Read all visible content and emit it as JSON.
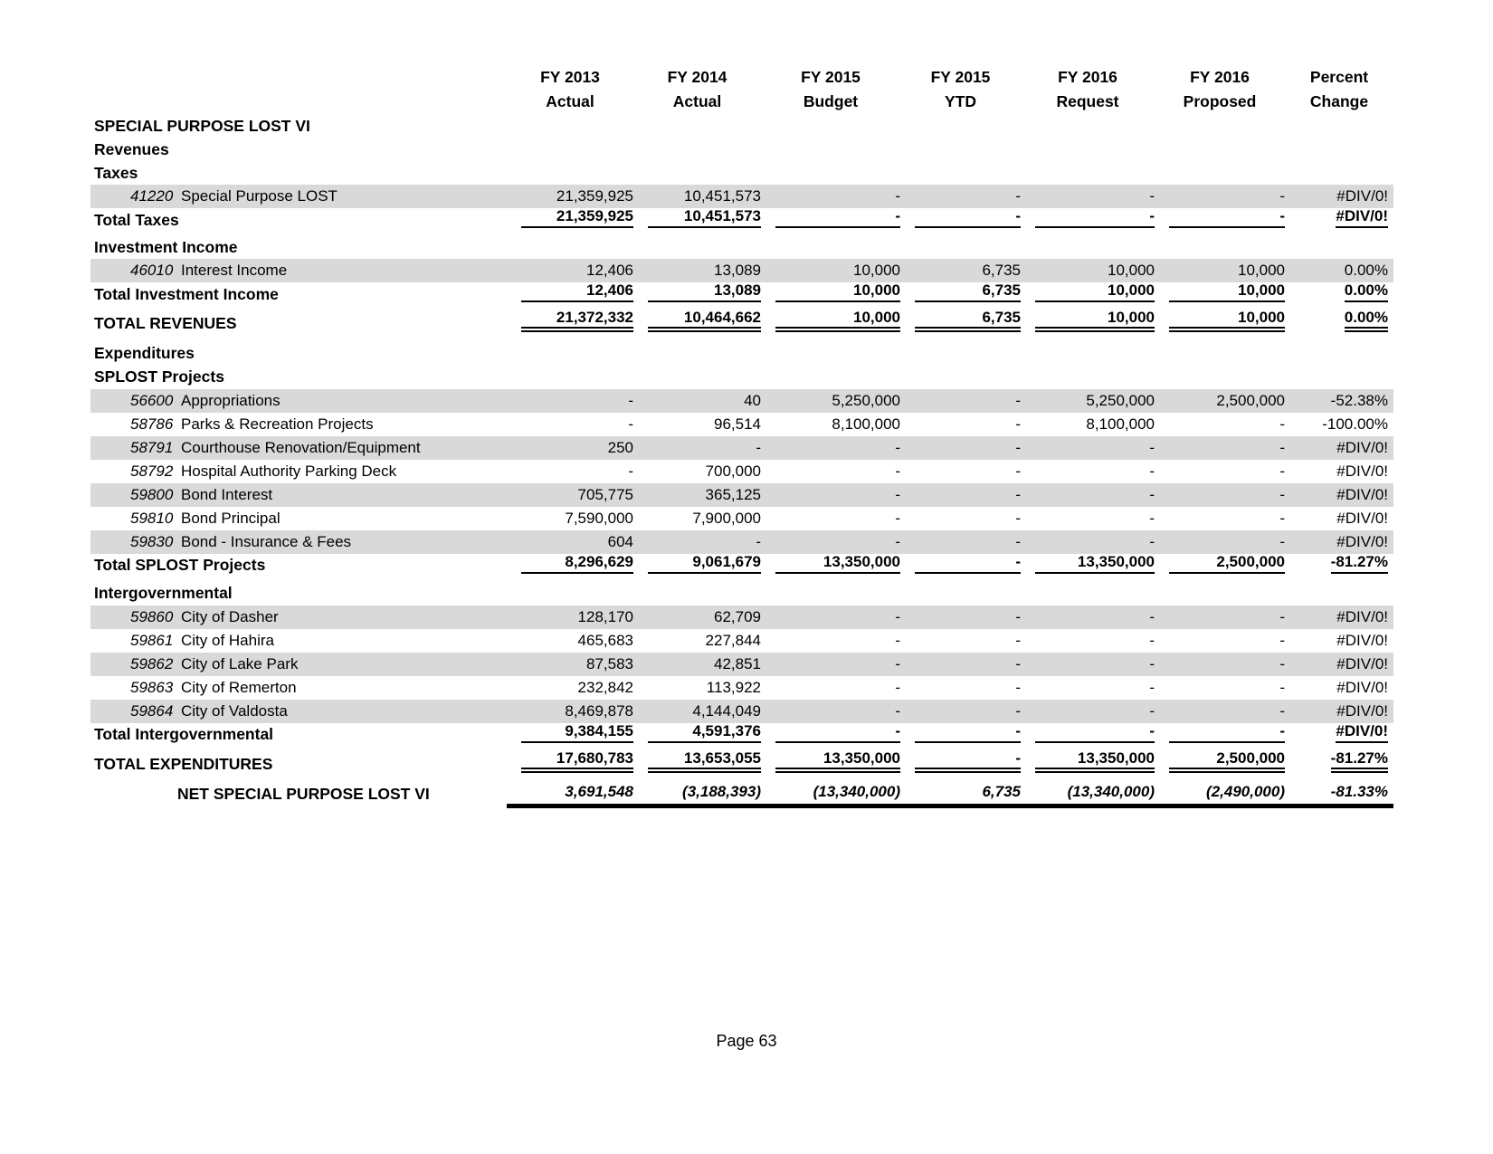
{
  "page": {
    "footer": "Page 63"
  },
  "colors": {
    "row_shading": "#d9d9d9",
    "text": "#000000",
    "background": "#ffffff"
  },
  "table": {
    "columns": [
      {
        "line1": "FY 2013",
        "line2": "Actual"
      },
      {
        "line1": "FY 2014",
        "line2": "Actual"
      },
      {
        "line1": "FY 2015",
        "line2": "Budget"
      },
      {
        "line1": "FY 2015",
        "line2": "YTD"
      },
      {
        "line1": "FY 2016",
        "line2": "Request"
      },
      {
        "line1": "FY 2016",
        "line2": "Proposed"
      },
      {
        "line1": "Percent",
        "line2": "Change"
      }
    ],
    "rows": [
      {
        "type": "section",
        "label": "SPECIAL PURPOSE LOST VI"
      },
      {
        "type": "section",
        "label": "Revenues"
      },
      {
        "type": "section",
        "label": "Taxes"
      },
      {
        "type": "detail",
        "shaded": true,
        "code": "41220",
        "label": "Special Purpose LOST",
        "values": [
          "21,359,925",
          "10,451,573",
          "-",
          "-",
          "-",
          "-",
          "#DIV/0!"
        ]
      },
      {
        "type": "total",
        "label": "Total Taxes",
        "values": [
          "21,359,925",
          "10,451,573",
          "-",
          "-",
          "-",
          "-",
          "#DIV/0!"
        ]
      },
      {
        "type": "spacer",
        "h": 4
      },
      {
        "type": "section",
        "label": "Investment Income"
      },
      {
        "type": "detail",
        "shaded": true,
        "code": "46010",
        "label": "Interest Income",
        "values": [
          "12,406",
          "13,089",
          "10,000",
          "6,735",
          "10,000",
          "10,000",
          "0.00%"
        ]
      },
      {
        "type": "total",
        "label": "Total Investment Income",
        "values": [
          "12,406",
          "13,089",
          "10,000",
          "6,735",
          "10,000",
          "10,000",
          "0.00%"
        ]
      },
      {
        "type": "spacer",
        "h": 4
      },
      {
        "type": "grand",
        "label": "TOTAL REVENUES",
        "values": [
          "21,372,332",
          "10,464,662",
          "10,000",
          "6,735",
          "10,000",
          "10,000",
          "0.00%"
        ]
      },
      {
        "type": "spacer",
        "h": 7
      },
      {
        "type": "section",
        "label": "Expenditures"
      },
      {
        "type": "section",
        "label": "SPLOST Projects"
      },
      {
        "type": "detail",
        "shaded": true,
        "code": "56600",
        "label": "Appropriations",
        "values": [
          "-",
          "40",
          "5,250,000",
          "-",
          "5,250,000",
          "2,500,000",
          "-52.38%"
        ]
      },
      {
        "type": "detail",
        "shaded": false,
        "code": "58786",
        "label": "Parks & Recreation Projects",
        "values": [
          "-",
          "96,514",
          "8,100,000",
          "-",
          "8,100,000",
          "-",
          "-100.00%"
        ]
      },
      {
        "type": "detail",
        "shaded": true,
        "code": "58791",
        "label": "Courthouse Renovation/Equipment",
        "values": [
          "250",
          "-",
          "-",
          "-",
          "-",
          "-",
          "#DIV/0!"
        ]
      },
      {
        "type": "detail",
        "shaded": false,
        "code": "58792",
        "label": "Hospital Authority Parking Deck",
        "values": [
          "-",
          "700,000",
          "-",
          "-",
          "-",
          "-",
          "#DIV/0!"
        ]
      },
      {
        "type": "detail",
        "shaded": true,
        "code": "59800",
        "label": "Bond Interest",
        "values": [
          "705,775",
          "365,125",
          "-",
          "-",
          "-",
          "-",
          "#DIV/0!"
        ]
      },
      {
        "type": "detail",
        "shaded": false,
        "code": "59810",
        "label": "Bond Principal",
        "values": [
          "7,590,000",
          "7,900,000",
          "-",
          "-",
          "-",
          "-",
          "#DIV/0!"
        ]
      },
      {
        "type": "detail",
        "shaded": true,
        "code": "59830",
        "label": "Bond - Insurance & Fees",
        "values": [
          "604",
          "-",
          "-",
          "-",
          "-",
          "-",
          "#DIV/0!"
        ]
      },
      {
        "type": "total",
        "label": "Total SPLOST Projects",
        "values": [
          "8,296,629",
          "9,061,679",
          "13,350,000",
          "-",
          "13,350,000",
          "2,500,000",
          "-81.27%"
        ]
      },
      {
        "type": "spacer",
        "h": 5
      },
      {
        "type": "section",
        "label": "Intergovernmental"
      },
      {
        "type": "detail",
        "shaded": true,
        "code": "59860",
        "label": "City of Dasher",
        "values": [
          "128,170",
          "62,709",
          "-",
          "-",
          "-",
          "-",
          "#DIV/0!"
        ]
      },
      {
        "type": "detail",
        "shaded": false,
        "code": "59861",
        "label": "City of Hahira",
        "values": [
          "465,683",
          "227,844",
          "-",
          "-",
          "-",
          "-",
          "#DIV/0!"
        ]
      },
      {
        "type": "detail",
        "shaded": true,
        "code": "59862",
        "label": "City of Lake Park",
        "values": [
          "87,583",
          "42,851",
          "-",
          "-",
          "-",
          "-",
          "#DIV/0!"
        ]
      },
      {
        "type": "detail",
        "shaded": false,
        "code": "59863",
        "label": "City of Remerton",
        "values": [
          "232,842",
          "113,922",
          "-",
          "-",
          "-",
          "-",
          "#DIV/0!"
        ]
      },
      {
        "type": "detail",
        "shaded": true,
        "code": "59864",
        "label": "City of Valdosta",
        "values": [
          "8,469,878",
          "4,144,049",
          "-",
          "-",
          "-",
          "-",
          "#DIV/0!"
        ]
      },
      {
        "type": "total",
        "label": "Total Intergovernmental",
        "values": [
          "9,384,155",
          "4,591,376",
          "-",
          "-",
          "-",
          "-",
          "#DIV/0!"
        ]
      },
      {
        "type": "spacer",
        "h": 4
      },
      {
        "type": "grand",
        "label": "TOTAL EXPENDITURES",
        "values": [
          "17,680,783",
          "13,653,055",
          "13,350,000",
          "-",
          "13,350,000",
          "2,500,000",
          "-81.27%"
        ]
      },
      {
        "type": "spacer",
        "h": 3
      },
      {
        "type": "net",
        "label": "NET SPECIAL PURPOSE LOST VI",
        "values": [
          "3,691,548",
          "(3,188,393)",
          "(13,340,000)",
          "6,735",
          "(13,340,000)",
          "(2,490,000)",
          "-81.33%"
        ]
      }
    ]
  }
}
